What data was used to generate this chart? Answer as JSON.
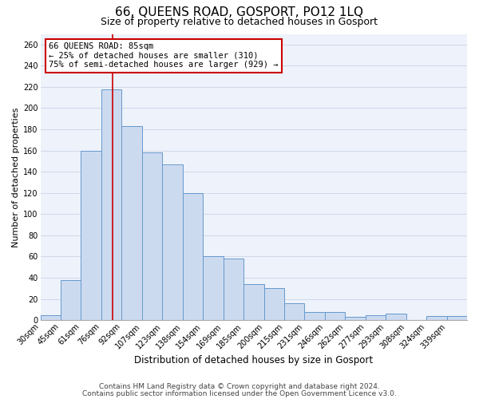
{
  "title": "66, QUEENS ROAD, GOSPORT, PO12 1LQ",
  "subtitle": "Size of property relative to detached houses in Gosport",
  "xlabel": "Distribution of detached houses by size in Gosport",
  "ylabel": "Number of detached properties",
  "categories": [
    "30sqm",
    "45sqm",
    "61sqm",
    "76sqm",
    "92sqm",
    "107sqm",
    "123sqm",
    "138sqm",
    "154sqm",
    "169sqm",
    "185sqm",
    "200sqm",
    "215sqm",
    "231sqm",
    "246sqm",
    "262sqm",
    "277sqm",
    "293sqm",
    "308sqm",
    "324sqm",
    "339sqm"
  ],
  "values": [
    5,
    38,
    160,
    218,
    183,
    158,
    147,
    120,
    60,
    58,
    34,
    30,
    16,
    8,
    8,
    3,
    5,
    6,
    0,
    4,
    4
  ],
  "bar_color": "#ccdaf0",
  "bar_edge_color": "#6699cc",
  "grid_color": "#d0d8e8",
  "background_color": "#edf2fb",
  "annotation_box_text": [
    "66 QUEENS ROAD: 85sqm",
    "← 25% of detached houses are smaller (310)",
    "75% of semi-detached houses are larger (929) →"
  ],
  "annotation_box_color": "white",
  "annotation_box_edge_color": "#cc0000",
  "vline_color": "#cc0000",
  "ylim": [
    0,
    270
  ],
  "yticks": [
    0,
    20,
    40,
    60,
    80,
    100,
    120,
    140,
    160,
    180,
    200,
    220,
    240,
    260
  ],
  "footer_lines": [
    "Contains HM Land Registry data © Crown copyright and database right 2024.",
    "Contains public sector information licensed under the Open Government Licence v3.0."
  ],
  "title_fontsize": 11,
  "subtitle_fontsize": 9,
  "xlabel_fontsize": 8.5,
  "ylabel_fontsize": 8,
  "tick_fontsize": 7,
  "ann_fontsize": 7.5,
  "footer_fontsize": 6.5
}
